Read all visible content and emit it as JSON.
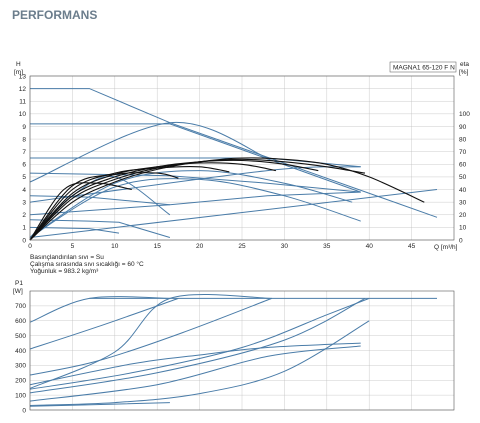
{
  "page_title": "PERFORMANS",
  "colors": {
    "curve": "#4a7ca8",
    "efficiency": "#111111",
    "grid": "#bfbfbf",
    "title": "#6b7d8c"
  },
  "chart_data": [
    {
      "type": "line",
      "id": "head",
      "model_label": "MAGNA1 65-120 F N",
      "ylabel_left": "H",
      "yunit_left": "[m]",
      "ylabel_right": "eta",
      "yunit_right": "[%]",
      "xlabel": "Q [m³/h]",
      "xlim": [
        0,
        50
      ],
      "xticks": [
        0,
        5,
        10,
        15,
        20,
        25,
        30,
        35,
        40,
        45
      ],
      "ylim": [
        0,
        13
      ],
      "yticks": [
        0,
        1,
        2,
        3,
        4,
        5,
        6,
        7,
        8,
        9,
        10,
        11,
        12,
        13
      ],
      "y2lim": [
        0,
        130
      ],
      "y2ticks": [
        0,
        10,
        20,
        30,
        40,
        50,
        60,
        70,
        80,
        90,
        100
      ],
      "grid": true,
      "notes": [
        "Basınçlandırılan sıvı = Su",
        "Çalışma sırasında sıvı sıcaklığı = 60 °C",
        "Yoğunluk = 983.2 kg/m³"
      ],
      "series": [
        {
          "kind": "pump",
          "x": [
            0,
            7,
            16.5,
            48
          ],
          "y": [
            12,
            12,
            9.3,
            1.8
          ]
        },
        {
          "kind": "pump",
          "x": [
            0,
            16.5,
            39
          ],
          "y": [
            9.2,
            9.2,
            3.8
          ]
        },
        {
          "kind": "pump",
          "x": [
            0,
            28,
            39
          ],
          "y": [
            6.5,
            6.5,
            5.8
          ]
        },
        {
          "kind": "pump",
          "x": [
            0,
            16.5,
            28,
            39
          ],
          "y": [
            5.3,
            5.1,
            4.5,
            3.8
          ]
        },
        {
          "kind": "pump",
          "x": [
            0,
            7,
            16.5
          ],
          "y": [
            3.5,
            3.4,
            2.8
          ]
        },
        {
          "kind": "pump",
          "x": [
            0,
            7,
            10.5,
            16.5
          ],
          "y": [
            1.6,
            1.5,
            1.4,
            0.2
          ]
        },
        {
          "kind": "pump",
          "x": [
            0,
            7,
            10.5
          ],
          "y": [
            1.0,
            0.9,
            0.55
          ]
        },
        {
          "kind": "pump",
          "x": [
            0,
            16.5,
            28,
            39
          ],
          "y": [
            2.0,
            2.8,
            3.5,
            3.8
          ]
        },
        {
          "kind": "system",
          "x": [
            0,
            48
          ],
          "y": [
            0.2,
            4.0
          ]
        },
        {
          "kind": "system",
          "x": [
            0,
            28,
            39
          ],
          "y": [
            3.0,
            5.5,
            5.8
          ]
        },
        {
          "kind": "system",
          "x": [
            0,
            16.5,
            28
          ],
          "y": [
            4.6,
            9.3,
            6.5
          ]
        },
        {
          "kind": "system",
          "x": [
            0,
            5,
            10,
            16.5
          ],
          "y": [
            0.2,
            3.5,
            5.0,
            2.0
          ]
        },
        {
          "kind": "system",
          "x": [
            0,
            10,
            20,
            30,
            39
          ],
          "y": [
            0.2,
            4.2,
            4.8,
            3.5,
            1.5
          ]
        },
        {
          "kind": "system",
          "x": [
            0,
            10,
            20,
            30,
            38
          ],
          "y": [
            0.2,
            4.5,
            5.5,
            4.5,
            3.0
          ]
        },
        {
          "kind": "efficiency",
          "x": [
            0,
            5,
            10,
            15,
            20,
            25,
            30,
            35,
            40,
            46.5
          ],
          "y2": [
            0,
            30,
            46,
            56,
            62,
            65,
            64,
            60,
            50,
            30
          ]
        },
        {
          "kind": "efficiency",
          "x": [
            0,
            5,
            10,
            15,
            20,
            25,
            30,
            35,
            39.5
          ],
          "y2": [
            0,
            33,
            48,
            57,
            62,
            64,
            62,
            58,
            53
          ]
        },
        {
          "kind": "efficiency",
          "x": [
            0,
            5,
            10,
            15,
            20,
            25,
            30,
            34
          ],
          "y2": [
            0,
            35,
            50,
            58,
            62,
            63,
            60,
            55
          ]
        },
        {
          "kind": "efficiency",
          "x": [
            0,
            5,
            10,
            15,
            20,
            25,
            29
          ],
          "y2": [
            0,
            37,
            52,
            58,
            61,
            60,
            55
          ]
        },
        {
          "kind": "efficiency",
          "x": [
            0,
            5,
            10,
            15,
            20,
            23.5
          ],
          "y2": [
            0,
            40,
            53,
            57,
            58,
            54
          ]
        },
        {
          "kind": "efficiency",
          "x": [
            0,
            5,
            10,
            15,
            17.5
          ],
          "y2": [
            0,
            43,
            52,
            53,
            49
          ]
        },
        {
          "kind": "efficiency",
          "x": [
            0,
            4,
            8,
            12
          ],
          "y2": [
            0,
            40,
            45,
            40
          ]
        }
      ]
    },
    {
      "type": "line",
      "id": "power",
      "ylabel": "P1",
      "yunit": "[W]",
      "xlim": [
        0,
        50
      ],
      "ylim": [
        0,
        800
      ],
      "yticks": [
        0,
        100,
        200,
        300,
        400,
        500,
        600,
        700
      ],
      "grid": true,
      "series": [
        {
          "kind": "power",
          "x": [
            0,
            7,
            16.5
          ],
          "y": [
            590,
            750,
            750
          ]
        },
        {
          "kind": "power",
          "x": [
            7,
            48
          ],
          "y": [
            750,
            750
          ]
        },
        {
          "kind": "power",
          "x": [
            0,
            8,
            17.5
          ],
          "y": [
            410,
            560,
            750
          ]
        },
        {
          "kind": "power",
          "x": [
            0,
            8,
            18,
            28.5
          ],
          "y": [
            235,
            330,
            520,
            750
          ]
        },
        {
          "kind": "power",
          "x": [
            0,
            15,
            30,
            39.5
          ],
          "y": [
            115,
            250,
            470,
            750
          ]
        },
        {
          "kind": "power",
          "x": [
            0,
            12,
            25,
            35,
            40
          ],
          "y": [
            140,
            250,
            420,
            640,
            750
          ]
        },
        {
          "kind": "power",
          "x": [
            0,
            10,
            16.5,
            28.5
          ],
          "y": [
            145,
            390,
            750,
            750
          ]
        },
        {
          "kind": "power",
          "x": [
            0,
            15,
            28,
            39
          ],
          "y": [
            60,
            170,
            360,
            430
          ]
        },
        {
          "kind": "power",
          "x": [
            0,
            12,
            20,
            28,
            39
          ],
          "y": [
            170,
            310,
            370,
            420,
            450
          ]
        },
        {
          "kind": "power",
          "x": [
            0,
            10,
            20,
            30,
            40
          ],
          "y": [
            30,
            50,
            110,
            260,
            600
          ]
        },
        {
          "kind": "power",
          "x": [
            0,
            10,
            16.5
          ],
          "y": [
            25,
            40,
            50
          ]
        }
      ]
    }
  ]
}
